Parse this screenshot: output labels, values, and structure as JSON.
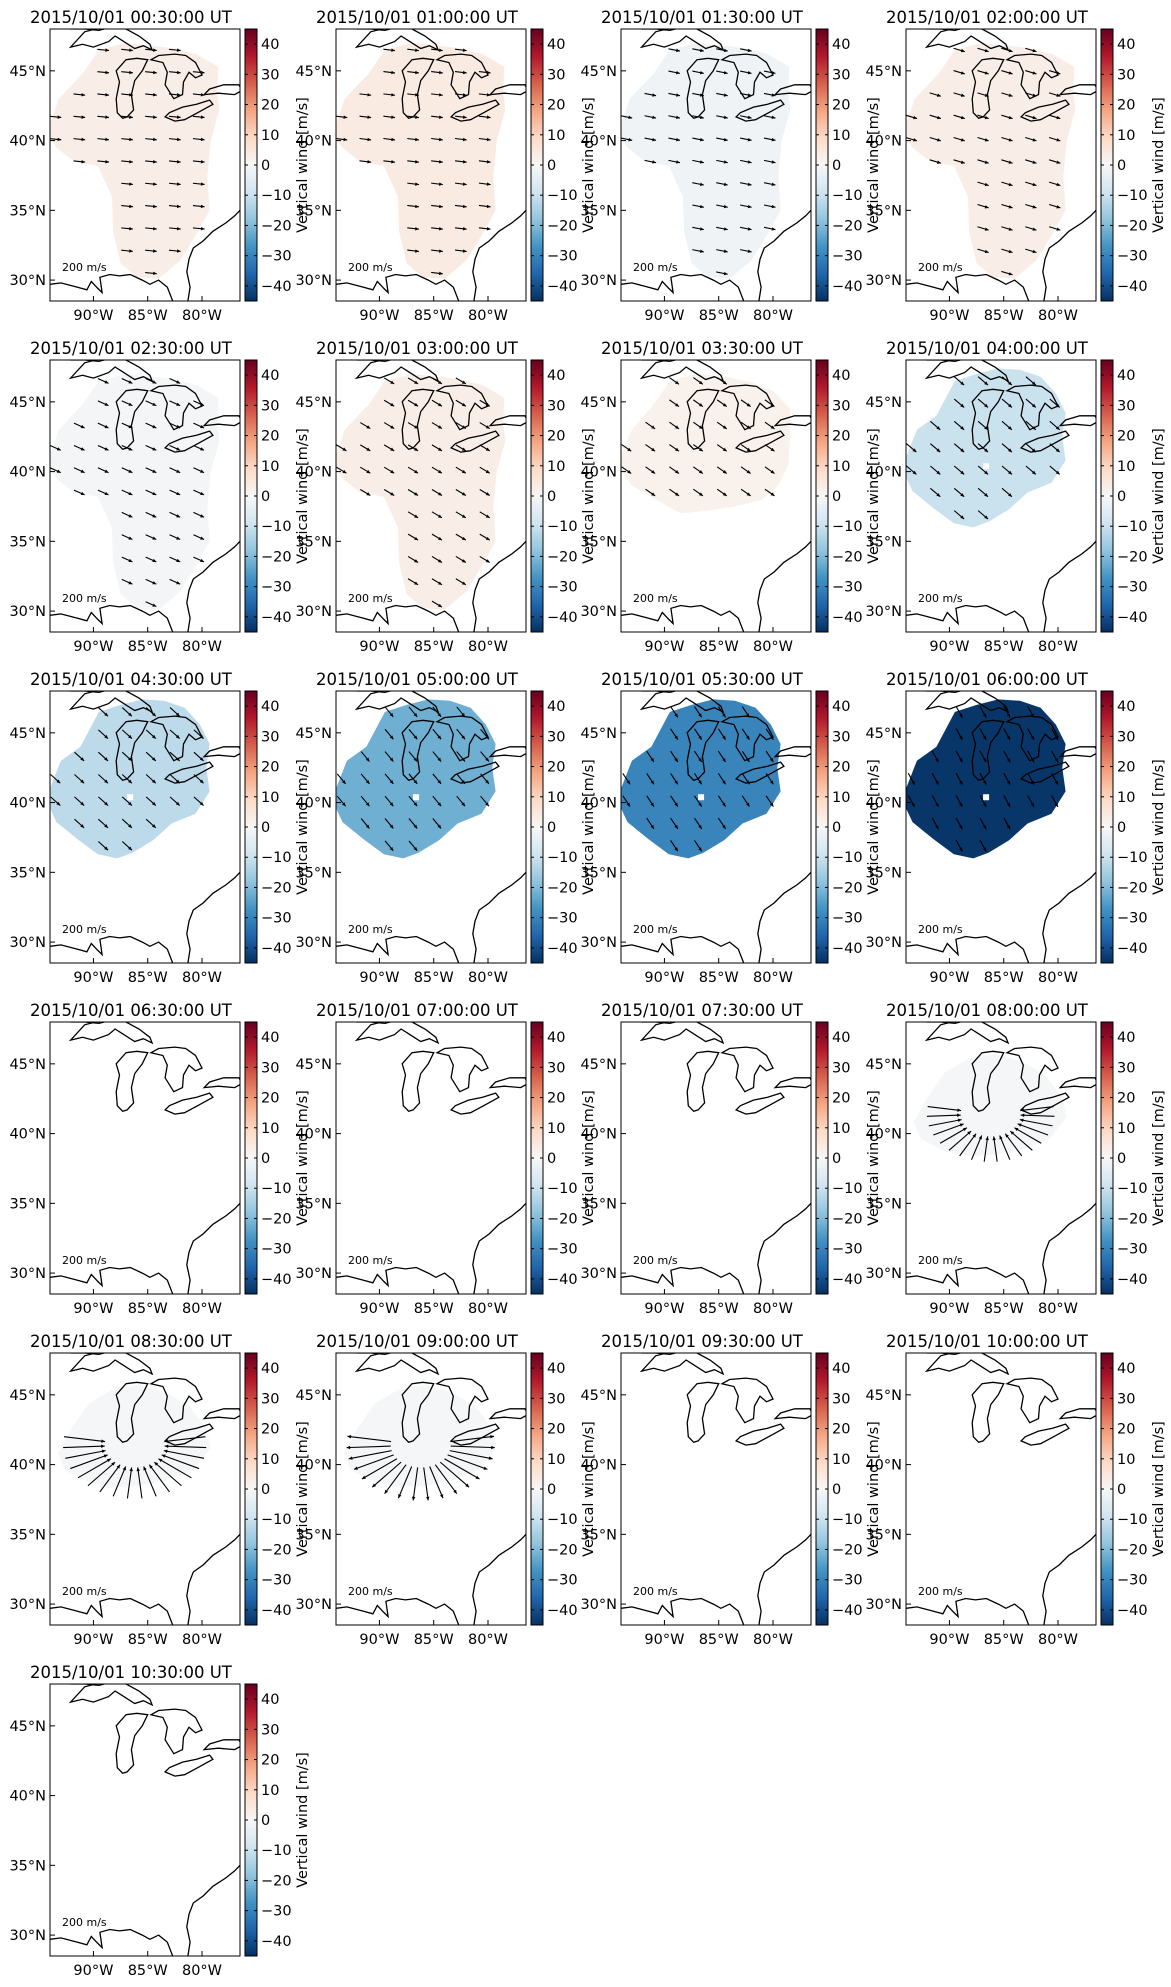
{
  "figure": {
    "colorbar_label": "Vertical wind [m/s]",
    "colorbar_ticks": [
      "40",
      "30",
      "20",
      "10",
      "0",
      "−10",
      "−20",
      "−30",
      "−40"
    ],
    "lat_ticks": [
      "45°N",
      "40°N",
      "35°N",
      "30°N"
    ],
    "lon_ticks": [
      "90°W",
      "85°W",
      "80°W"
    ],
    "arrow_key": "200 m/s",
    "vmin": -45,
    "vmax": 45,
    "colormap": [
      "#67001f",
      "#b2182b",
      "#d6604d",
      "#f4a582",
      "#fddbc7",
      "#f7f7f7",
      "#d1e5f0",
      "#92c5de",
      "#4393c3",
      "#2166ac",
      "#053061"
    ]
  },
  "chart_data": [
    {
      "type": "heatmap",
      "title": "2015/10/01 00:30:00 UT",
      "region": "full",
      "value": 3,
      "arrow": {
        "dir": [
          1,
          0.1
        ],
        "len": 0.45,
        "grid": "dense"
      }
    },
    {
      "type": "heatmap",
      "title": "2015/10/01 01:00:00 UT",
      "region": "full",
      "value": 4,
      "arrow": {
        "dir": [
          1,
          0.12
        ],
        "len": 0.45,
        "grid": "dense"
      }
    },
    {
      "type": "heatmap",
      "title": "2015/10/01 01:30:00 UT",
      "region": "full",
      "value": -2,
      "arrow": {
        "dir": [
          1,
          0.2
        ],
        "len": 0.45,
        "grid": "dense"
      }
    },
    {
      "type": "heatmap",
      "title": "2015/10/01 02:00:00 UT",
      "region": "full",
      "value": 3,
      "arrow": {
        "dir": [
          1,
          0.3
        ],
        "len": 0.45,
        "grid": "dense"
      }
    },
    {
      "type": "heatmap",
      "title": "2015/10/01 02:30:00 UT",
      "region": "full",
      "value": -1,
      "arrow": {
        "dir": [
          1,
          0.45
        ],
        "len": 0.45,
        "grid": "dense"
      }
    },
    {
      "type": "heatmap",
      "title": "2015/10/01 03:00:00 UT",
      "region": "full",
      "value": 3,
      "arrow": {
        "dir": [
          1,
          0.6
        ],
        "len": 0.45,
        "grid": "dense"
      }
    },
    {
      "type": "heatmap",
      "title": "2015/10/01 03:30:00 UT",
      "region": "mid",
      "value": 2,
      "arrow": {
        "dir": [
          1,
          0.7
        ],
        "len": 0.45,
        "grid": "dense"
      }
    },
    {
      "type": "heatmap",
      "title": "2015/10/01 04:00:00 UT",
      "region": "north",
      "value": -10,
      "arrow": {
        "dir": [
          1,
          0.85
        ],
        "len": 0.5,
        "grid": "dense"
      }
    },
    {
      "type": "heatmap",
      "title": "2015/10/01 04:30:00 UT",
      "region": "north",
      "value": -12,
      "arrow": {
        "dir": [
          1,
          0.9
        ],
        "len": 0.5,
        "grid": "dense"
      }
    },
    {
      "type": "heatmap",
      "title": "2015/10/01 05:00:00 UT",
      "region": "north",
      "value": -22,
      "arrow": {
        "dir": [
          1,
          1.2
        ],
        "len": 0.5,
        "grid": "dense"
      }
    },
    {
      "type": "heatmap",
      "title": "2015/10/01 05:30:00 UT",
      "region": "north",
      "value": -30,
      "arrow": {
        "dir": [
          1,
          1.5
        ],
        "len": 0.5,
        "grid": "dense"
      }
    },
    {
      "type": "heatmap",
      "title": "2015/10/01 06:00:00 UT",
      "region": "north",
      "value": -44,
      "arrow": {
        "dir": [
          1,
          1.8
        ],
        "len": 0.5,
        "grid": "dense"
      }
    },
    {
      "type": "heatmap",
      "title": "2015/10/01 06:30:00 UT",
      "region": "none",
      "value": 0,
      "arrow": null
    },
    {
      "type": "heatmap",
      "title": "2015/10/01 07:00:00 UT",
      "region": "none",
      "value": 0,
      "arrow": null
    },
    {
      "type": "heatmap",
      "title": "2015/10/01 07:30:00 UT",
      "region": "none",
      "value": 0,
      "arrow": null
    },
    {
      "type": "heatmap",
      "title": "2015/10/01 08:00:00 UT",
      "region": "band",
      "value": -0.5,
      "arrow": {
        "mode": "radial",
        "sign": 1,
        "len": 1.3
      }
    },
    {
      "type": "heatmap",
      "title": "2015/10/01 08:30:00 UT",
      "region": "band",
      "value": -0.5,
      "arrow": {
        "mode": "radial",
        "sign": 1,
        "len": 1.6
      }
    },
    {
      "type": "heatmap",
      "title": "2015/10/01 09:00:00 UT",
      "region": "band",
      "value": -0.5,
      "arrow": {
        "mode": "radial",
        "sign": -1,
        "len": 1.7
      }
    },
    {
      "type": "heatmap",
      "title": "2015/10/01 09:30:00 UT",
      "region": "none",
      "value": 0,
      "arrow": null
    },
    {
      "type": "heatmap",
      "title": "2015/10/01 10:00:00 UT",
      "region": "none",
      "value": 0,
      "arrow": null
    },
    {
      "type": "heatmap",
      "title": "2015/10/01 10:30:00 UT",
      "region": "none",
      "value": 0,
      "arrow": null
    }
  ]
}
